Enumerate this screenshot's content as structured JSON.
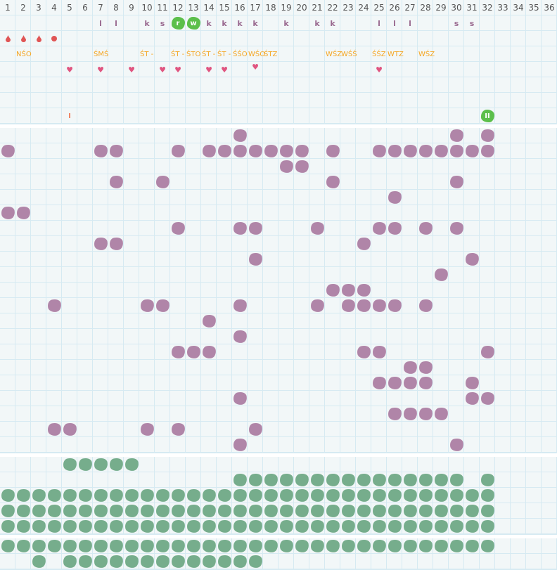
{
  "colors": {
    "purple": "#b085a8",
    "green": "#76ad8c",
    "badge": "#5cbf4b",
    "label": "#f5a623",
    "heart": "#e05580",
    "drop": "#e05555"
  },
  "header": {
    "columns": [
      "1",
      "2",
      "3",
      "4",
      "5",
      "6",
      "7",
      "8",
      "9",
      "10",
      "11",
      "12",
      "13",
      "14",
      "15",
      "16",
      "17",
      "18",
      "19",
      "20",
      "21",
      "22",
      "23",
      "24",
      "25",
      "26",
      "27",
      "28",
      "29",
      "30",
      "31",
      "32",
      "33",
      "34",
      "35",
      "36"
    ]
  },
  "top_rows": {
    "letters": [
      {
        "col": 7,
        "text": "l"
      },
      {
        "col": 8,
        "text": "l"
      },
      {
        "col": 10,
        "text": "k"
      },
      {
        "col": 11,
        "text": "s"
      },
      {
        "col": 12,
        "text": "r",
        "badge": true
      },
      {
        "col": 13,
        "text": "w",
        "badge": true
      },
      {
        "col": 14,
        "text": "k"
      },
      {
        "col": 15,
        "text": "k"
      },
      {
        "col": 16,
        "text": "k"
      },
      {
        "col": 17,
        "text": "k"
      },
      {
        "col": 19,
        "text": "k"
      },
      {
        "col": 21,
        "text": "k"
      },
      {
        "col": 22,
        "text": "k"
      },
      {
        "col": 25,
        "text": "l"
      },
      {
        "col": 26,
        "text": "l"
      },
      {
        "col": 27,
        "text": "l"
      },
      {
        "col": 30,
        "text": "s"
      },
      {
        "col": 31,
        "text": "s"
      }
    ],
    "drops": [
      {
        "col": 1,
        "icon": "drop-icon"
      },
      {
        "col": 2,
        "icon": "drop-icon"
      },
      {
        "col": 3,
        "icon": "drop-icon"
      },
      {
        "col": 4,
        "icon": "dot-icon"
      }
    ],
    "labels": [
      {
        "col": 2,
        "text": "NŚO"
      },
      {
        "col": 7,
        "text": "ŚMŚ"
      },
      {
        "col": 10,
        "text": "ŚT -"
      },
      {
        "col": 12,
        "text": "ŚT -"
      },
      {
        "col": 13,
        "text": "ŚTO"
      },
      {
        "col": 14,
        "text": "ŚT -"
      },
      {
        "col": 15,
        "text": "ŚT -"
      },
      {
        "col": 16,
        "text": "ŚŚO"
      },
      {
        "col": 17,
        "text": "WŚO"
      },
      {
        "col": 18,
        "text": "ŚTZ"
      },
      {
        "col": 22,
        "text": "WŚZ"
      },
      {
        "col": 23,
        "text": "WŚŚ"
      },
      {
        "col": 25,
        "text": "ŚŚZ"
      },
      {
        "col": 26,
        "text": "WTZ"
      },
      {
        "col": 28,
        "text": "WŚZ"
      }
    ],
    "hearts": [
      5,
      7,
      9,
      11,
      12,
      14,
      15,
      17,
      25
    ],
    "markers": [
      {
        "col": 5,
        "text": "I"
      },
      {
        "col": 32,
        "text": "II",
        "badge": true
      }
    ]
  },
  "purple_rows": [
    [
      16,
      30,
      32
    ],
    [
      1,
      7,
      8,
      12,
      14,
      15,
      16,
      17,
      18,
      19,
      20,
      22,
      25,
      26,
      27,
      28,
      29,
      30,
      31,
      32
    ],
    [
      19,
      20
    ],
    [
      8,
      11,
      22,
      30
    ],
    [
      26
    ],
    [
      1,
      2
    ],
    [
      12,
      16,
      17,
      21,
      25,
      26,
      28,
      30
    ],
    [
      7,
      8,
      24
    ],
    [
      17,
      31
    ],
    [
      29
    ],
    [
      22,
      23,
      24
    ],
    [
      4,
      10,
      11,
      16,
      21,
      23,
      24,
      25,
      26,
      28
    ],
    [
      14
    ],
    [
      16
    ],
    [
      12,
      13,
      14,
      24,
      25,
      32
    ],
    [
      27,
      28
    ],
    [
      25,
      26,
      27,
      28,
      31
    ],
    [
      16,
      31,
      32
    ],
    [
      26,
      27,
      28,
      29
    ],
    [
      4,
      5,
      10,
      12,
      17
    ],
    [
      16,
      30
    ]
  ],
  "green_rows_a": [
    [
      5,
      6,
      7,
      8,
      9
    ],
    [
      16,
      17,
      18,
      19,
      20,
      21,
      22,
      23,
      24,
      25,
      26,
      27,
      28,
      29,
      30,
      32
    ],
    "all32",
    "all32",
    "all32"
  ],
  "green_rows_b": [
    "all32",
    [
      3,
      5,
      6,
      7,
      8,
      9,
      10,
      11,
      12,
      13,
      14,
      15,
      16,
      17
    ]
  ]
}
